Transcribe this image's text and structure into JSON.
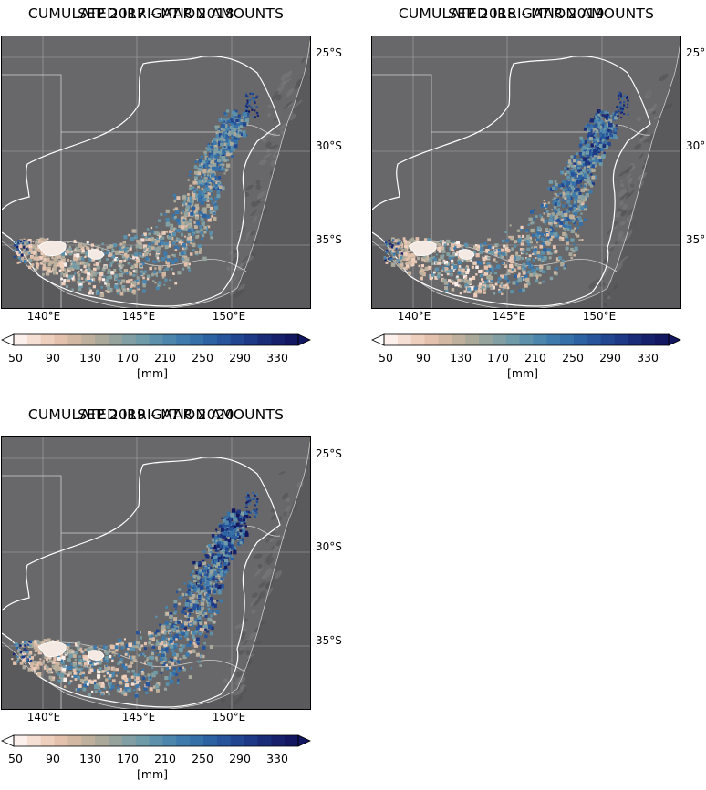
{
  "panels": [
    {
      "title_line1": "CUMULATED IRRIGATION AMOUNTS",
      "title_line2": "SEP 2017 - MAR 2018",
      "intensity": 0.75
    },
    {
      "title_line1": "CUMULATED IRRIGATION AMOUNTS",
      "title_line2": "SEP 2018 - MAR 2019",
      "intensity": 0.85
    },
    {
      "title_line1": "CUMULATED IRRIGATION AMOUNTS",
      "title_line2": "SEP 2019 - MAR 2020",
      "intensity": 0.95
    }
  ],
  "axes": {
    "x_ticks": [
      "140°E",
      "145°E",
      "150°E"
    ],
    "y_ticks": [
      "25°S",
      "30°S",
      "35°S"
    ]
  },
  "colorbar": {
    "tick_labels": [
      "50",
      "90",
      "130",
      "170",
      "210",
      "250",
      "290",
      "330"
    ],
    "unit": "[mm]",
    "colors": [
      "#fbf0ec",
      "#f5ded4",
      "#eecfbd",
      "#e3c1ad",
      "#d2b8a3",
      "#bfb09d",
      "#aaa99a",
      "#96a39c",
      "#82a0a3",
      "#6f9aa8",
      "#5d91ab",
      "#4d86ad",
      "#3f7aac",
      "#3670a8",
      "#2d62a2",
      "#27549a",
      "#224690",
      "#1e3985",
      "#1a2c78",
      "#17216b",
      "#131660"
    ]
  }
}
